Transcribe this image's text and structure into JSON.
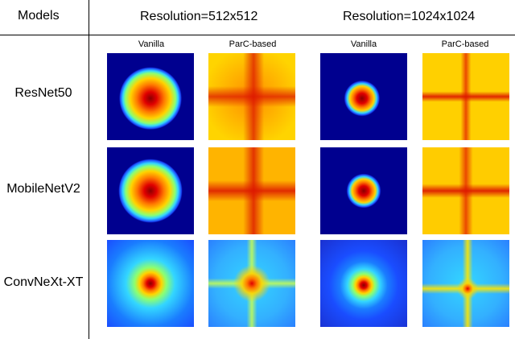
{
  "header": {
    "models_label": "Models",
    "res1_label": "Resolution=512x512",
    "res2_label": "Resolution=1024x1024"
  },
  "subheaders": [
    "Vanilla",
    "ParC-based",
    "Vanilla",
    "ParC-based"
  ],
  "rows": [
    {
      "label": "ResNet50"
    },
    {
      "label": "MobileNetV2"
    },
    {
      "label": "ConvNeXt-XT"
    }
  ],
  "colors": {
    "dark_blue": "#00008f",
    "blue": "#1a4dff",
    "cyan": "#33d6ff",
    "yellow": "#ffd400",
    "orange": "#ff7a00",
    "red": "#e00000",
    "dark_red": "#8a0000"
  }
}
